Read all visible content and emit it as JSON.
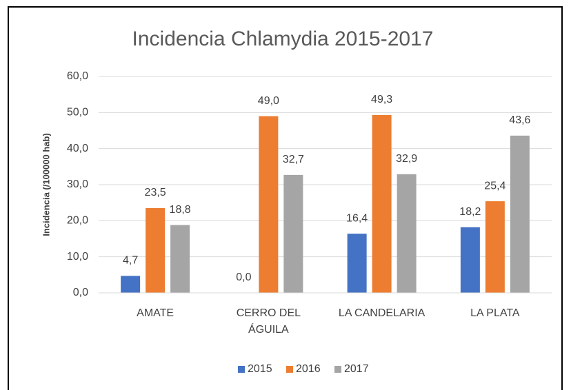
{
  "chart_data": {
    "type": "bar",
    "title": "Incidencia Chlamydia 2015-2017",
    "y_label": "Incidencia (/100000 hab)",
    "categories": [
      "AMATE",
      "CERRO DEL ÁGUILA",
      "LA CANDELARIA",
      "LA PLATA"
    ],
    "series": [
      {
        "name": "2015",
        "color": "#4472c4",
        "values": [
          4.7,
          0,
          16.4,
          18.2
        ],
        "value_labels": [
          "4,7",
          "0,0",
          "16,4",
          "18,2"
        ]
      },
      {
        "name": "2016",
        "color": "#ed7d31",
        "values": [
          23.5,
          49.0,
          49.3,
          25.4
        ],
        "value_labels": [
          "23,5",
          "49,0",
          "49,3",
          "25,4"
        ]
      },
      {
        "name": "2017",
        "color": "#a5a5a5",
        "values": [
          18.8,
          32.7,
          32.9,
          43.6
        ],
        "value_labels": [
          "18,8",
          "32,7",
          "32,9",
          "43,6"
        ]
      }
    ],
    "ylim": [
      0,
      60
    ],
    "yticks": [
      {
        "value": 0,
        "label": "0,0"
      },
      {
        "value": 10,
        "label": "10,0"
      },
      {
        "value": 20,
        "label": "20,0"
      },
      {
        "value": 30,
        "label": "30,0"
      },
      {
        "value": 40,
        "label": "40,0"
      },
      {
        "value": 50,
        "label": "50,0"
      },
      {
        "value": 60,
        "label": "60,0"
      }
    ],
    "grid": true,
    "legend": "bottom"
  }
}
